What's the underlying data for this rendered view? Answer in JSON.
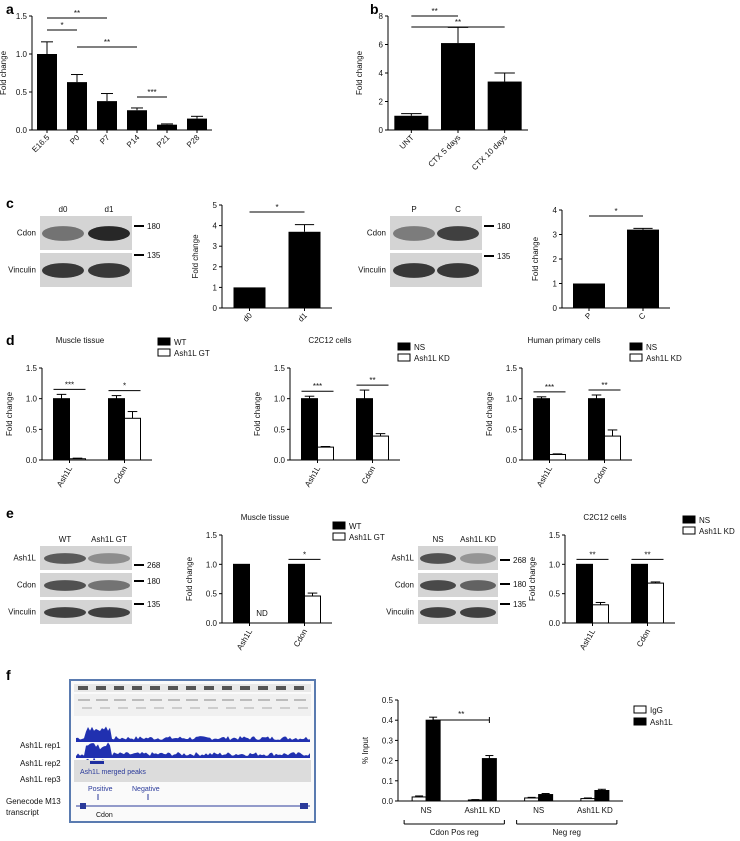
{
  "panels": {
    "a": "a",
    "b": "b",
    "c": "c",
    "d": "d",
    "e": "e",
    "f": "f"
  },
  "charts": {
    "a": {
      "type": "bar",
      "ylabel": "Fold change",
      "categories": [
        "E16.5",
        "P0",
        "P7",
        "P14",
        "P21",
        "P28"
      ],
      "values": [
        1.0,
        0.63,
        0.38,
        0.26,
        0.07,
        0.15
      ],
      "errors": [
        0.16,
        0.1,
        0.1,
        0.03,
        0.01,
        0.03
      ],
      "ylim": [
        0,
        1.5
      ],
      "yticks": [
        "0.0",
        "0.5",
        "1.0",
        "1.5"
      ],
      "sig": [
        {
          "from": 0,
          "to": 2,
          "label": "**"
        },
        {
          "from": 0,
          "to": 1,
          "label": "*"
        },
        {
          "from": 1,
          "to": 3,
          "label": "**"
        },
        {
          "from": 3,
          "to": 4,
          "label": "***"
        }
      ]
    },
    "b": {
      "type": "bar",
      "ylabel": "Fold change",
      "categories": [
        "UNT",
        "CTX 5 days",
        "CTX 10 days"
      ],
      "values": [
        1.0,
        6.1,
        3.4
      ],
      "errors": [
        0.15,
        1.1,
        0.6
      ],
      "ylim": [
        0,
        8
      ],
      "yticks": [
        "0",
        "2",
        "4",
        "6",
        "8"
      ],
      "sig": [
        {
          "from": 0,
          "to": 1,
          "label": "**"
        },
        {
          "from": 0,
          "to": 2,
          "label": "**"
        }
      ]
    },
    "c1": {
      "type": "bar",
      "ylabel": "Fold change",
      "categories": [
        "d0",
        "d1"
      ],
      "values": [
        1.0,
        3.7
      ],
      "errors": [
        0,
        0.35
      ],
      "ylim": [
        0,
        5
      ],
      "yticks": [
        "0",
        "1",
        "2",
        "3",
        "4",
        "5"
      ],
      "sig": [
        {
          "from": 0,
          "to": 1,
          "label": "*"
        }
      ]
    },
    "c2": {
      "type": "bar",
      "ylabel": "Fold change",
      "categories": [
        "P",
        "C"
      ],
      "values": [
        1.0,
        3.2
      ],
      "errors": [
        0,
        0.05
      ],
      "ylim": [
        0,
        4
      ],
      "yticks": [
        "0",
        "1",
        "2",
        "3",
        "4"
      ],
      "sig": [
        {
          "from": 0,
          "to": 1,
          "label": "*"
        }
      ]
    },
    "d1": {
      "type": "bar",
      "title": "Muscle tissue",
      "ylabel": "Fold change",
      "categories": [
        "Ash1L",
        "Cdon"
      ],
      "series": [
        {
          "name": "WT",
          "values": [
            1.0,
            1.0
          ],
          "errors": [
            0.07,
            0.05
          ]
        },
        {
          "name": "Ash1L GT",
          "values": [
            0.02,
            0.68
          ],
          "errors": [
            0.01,
            0.11
          ]
        }
      ],
      "ylim": [
        0,
        1.5
      ],
      "yticks": [
        "0.0",
        "0.5",
        "1.0",
        "1.5"
      ],
      "sig": [
        "***",
        "*"
      ]
    },
    "d2": {
      "type": "bar",
      "title": "C2C12 cells",
      "ylabel": "Fold change",
      "categories": [
        "Ash1L",
        "Cdon"
      ],
      "series": [
        {
          "name": "NS",
          "values": [
            1.0,
            1.0
          ],
          "errors": [
            0.04,
            0.14
          ]
        },
        {
          "name": "Ash1L KD",
          "values": [
            0.21,
            0.39
          ],
          "errors": [
            0.01,
            0.04
          ]
        }
      ],
      "ylim": [
        0,
        1.5
      ],
      "yticks": [
        "0.0",
        "0.5",
        "1.0",
        "1.5"
      ],
      "sig": [
        "***",
        "**"
      ]
    },
    "d3": {
      "type": "bar",
      "title": "Human primary cells",
      "ylabel": "Fold change",
      "categories": [
        "Ash1L",
        "Cdon"
      ],
      "series": [
        {
          "name": "NS",
          "values": [
            1.0,
            1.0
          ],
          "errors": [
            0.03,
            0.06
          ]
        },
        {
          "name": "Ash1L KD",
          "values": [
            0.09,
            0.39
          ],
          "errors": [
            0.01,
            0.1
          ]
        }
      ],
      "ylim": [
        0,
        1.5
      ],
      "yticks": [
        "0.0",
        "0.5",
        "1.0",
        "1.5"
      ],
      "sig": [
        "***",
        "**"
      ]
    },
    "e1": {
      "type": "bar",
      "title": "Muscle tissue",
      "ylabel": "Fold change",
      "categories": [
        "Ash1L",
        "Cdon"
      ],
      "series": [
        {
          "name": "WT",
          "values": [
            1.0,
            1.0
          ],
          "errors": [
            0,
            0
          ]
        },
        {
          "name": "Ash1L GT",
          "values": [
            0,
            0.46
          ],
          "errors": [
            0,
            0.05
          ]
        }
      ],
      "annotation": "ND",
      "ylim": [
        0,
        1.5
      ],
      "yticks": [
        "0.0",
        "0.5",
        "1.0",
        "1.5"
      ],
      "sig": [
        null,
        "*"
      ]
    },
    "e2": {
      "type": "bar",
      "title": "C2C12 cells",
      "ylabel": "Fold change",
      "categories": [
        "Ash1L",
        "Cdon"
      ],
      "series": [
        {
          "name": "NS",
          "values": [
            1.0,
            1.0
          ],
          "errors": [
            0,
            0
          ]
        },
        {
          "name": "Ash1L KD",
          "values": [
            0.31,
            0.68
          ],
          "errors": [
            0.04,
            0.02
          ]
        }
      ],
      "ylim": [
        0,
        1.5
      ],
      "yticks": [
        "0.0",
        "0.5",
        "1.0",
        "1.5"
      ],
      "sig": [
        "**",
        "**"
      ]
    },
    "f": {
      "type": "bar",
      "ylabel": "% Input",
      "categories": [
        "NS",
        "Ash1L KD",
        "NS",
        "Ash1L KD"
      ],
      "groups": [
        "Cdon Pos reg",
        "Neg reg"
      ],
      "series": [
        {
          "name": "IgG",
          "values": [
            0.02,
            0.005,
            0.015,
            0.012
          ],
          "errors": [
            0.005,
            0.002,
            0.003,
            0.003
          ]
        },
        {
          "name": "Ash1L",
          "values": [
            0.4,
            0.21,
            0.032,
            0.052
          ],
          "errors": [
            0.015,
            0.015,
            0.005,
            0.006
          ]
        }
      ],
      "ylim": [
        0,
        0.5
      ],
      "yticks": [
        "0.0",
        "0.1",
        "0.2",
        "0.3",
        "0.4",
        "0.5"
      ],
      "sig": [
        {
          "from": 0,
          "to": 1,
          "label": "**"
        }
      ]
    }
  },
  "blots": {
    "c1": {
      "lanes": [
        "d0",
        "d1"
      ],
      "rows": [
        "Cdon",
        "Vinculin"
      ],
      "markers": [
        "180",
        "135"
      ]
    },
    "c2": {
      "lanes": [
        "P",
        "C"
      ],
      "rows": [
        "Cdon",
        "Vinculin"
      ],
      "markers": [
        "180",
        "135"
      ]
    },
    "e1": {
      "lanes": [
        "WT",
        "Ash1L GT"
      ],
      "rows": [
        "Ash1L",
        "Cdon",
        "Vinculin"
      ],
      "markers": [
        "268",
        "180",
        "135"
      ]
    },
    "e2": {
      "lanes": [
        "NS",
        "Ash1L KD"
      ],
      "rows": [
        "Ash1L",
        "Cdon",
        "Vinculin"
      ],
      "markers": [
        "268",
        "180",
        "135"
      ]
    }
  },
  "genome": {
    "tracks": [
      "Ash1L rep1",
      "Ash1L rep2",
      "Ash1L rep3"
    ],
    "merged": "Ash1L merged peaks",
    "annot_label": "Genecode M13 transcript",
    "positive": "Positive",
    "negative": "Negative",
    "gene": "Cdon"
  }
}
